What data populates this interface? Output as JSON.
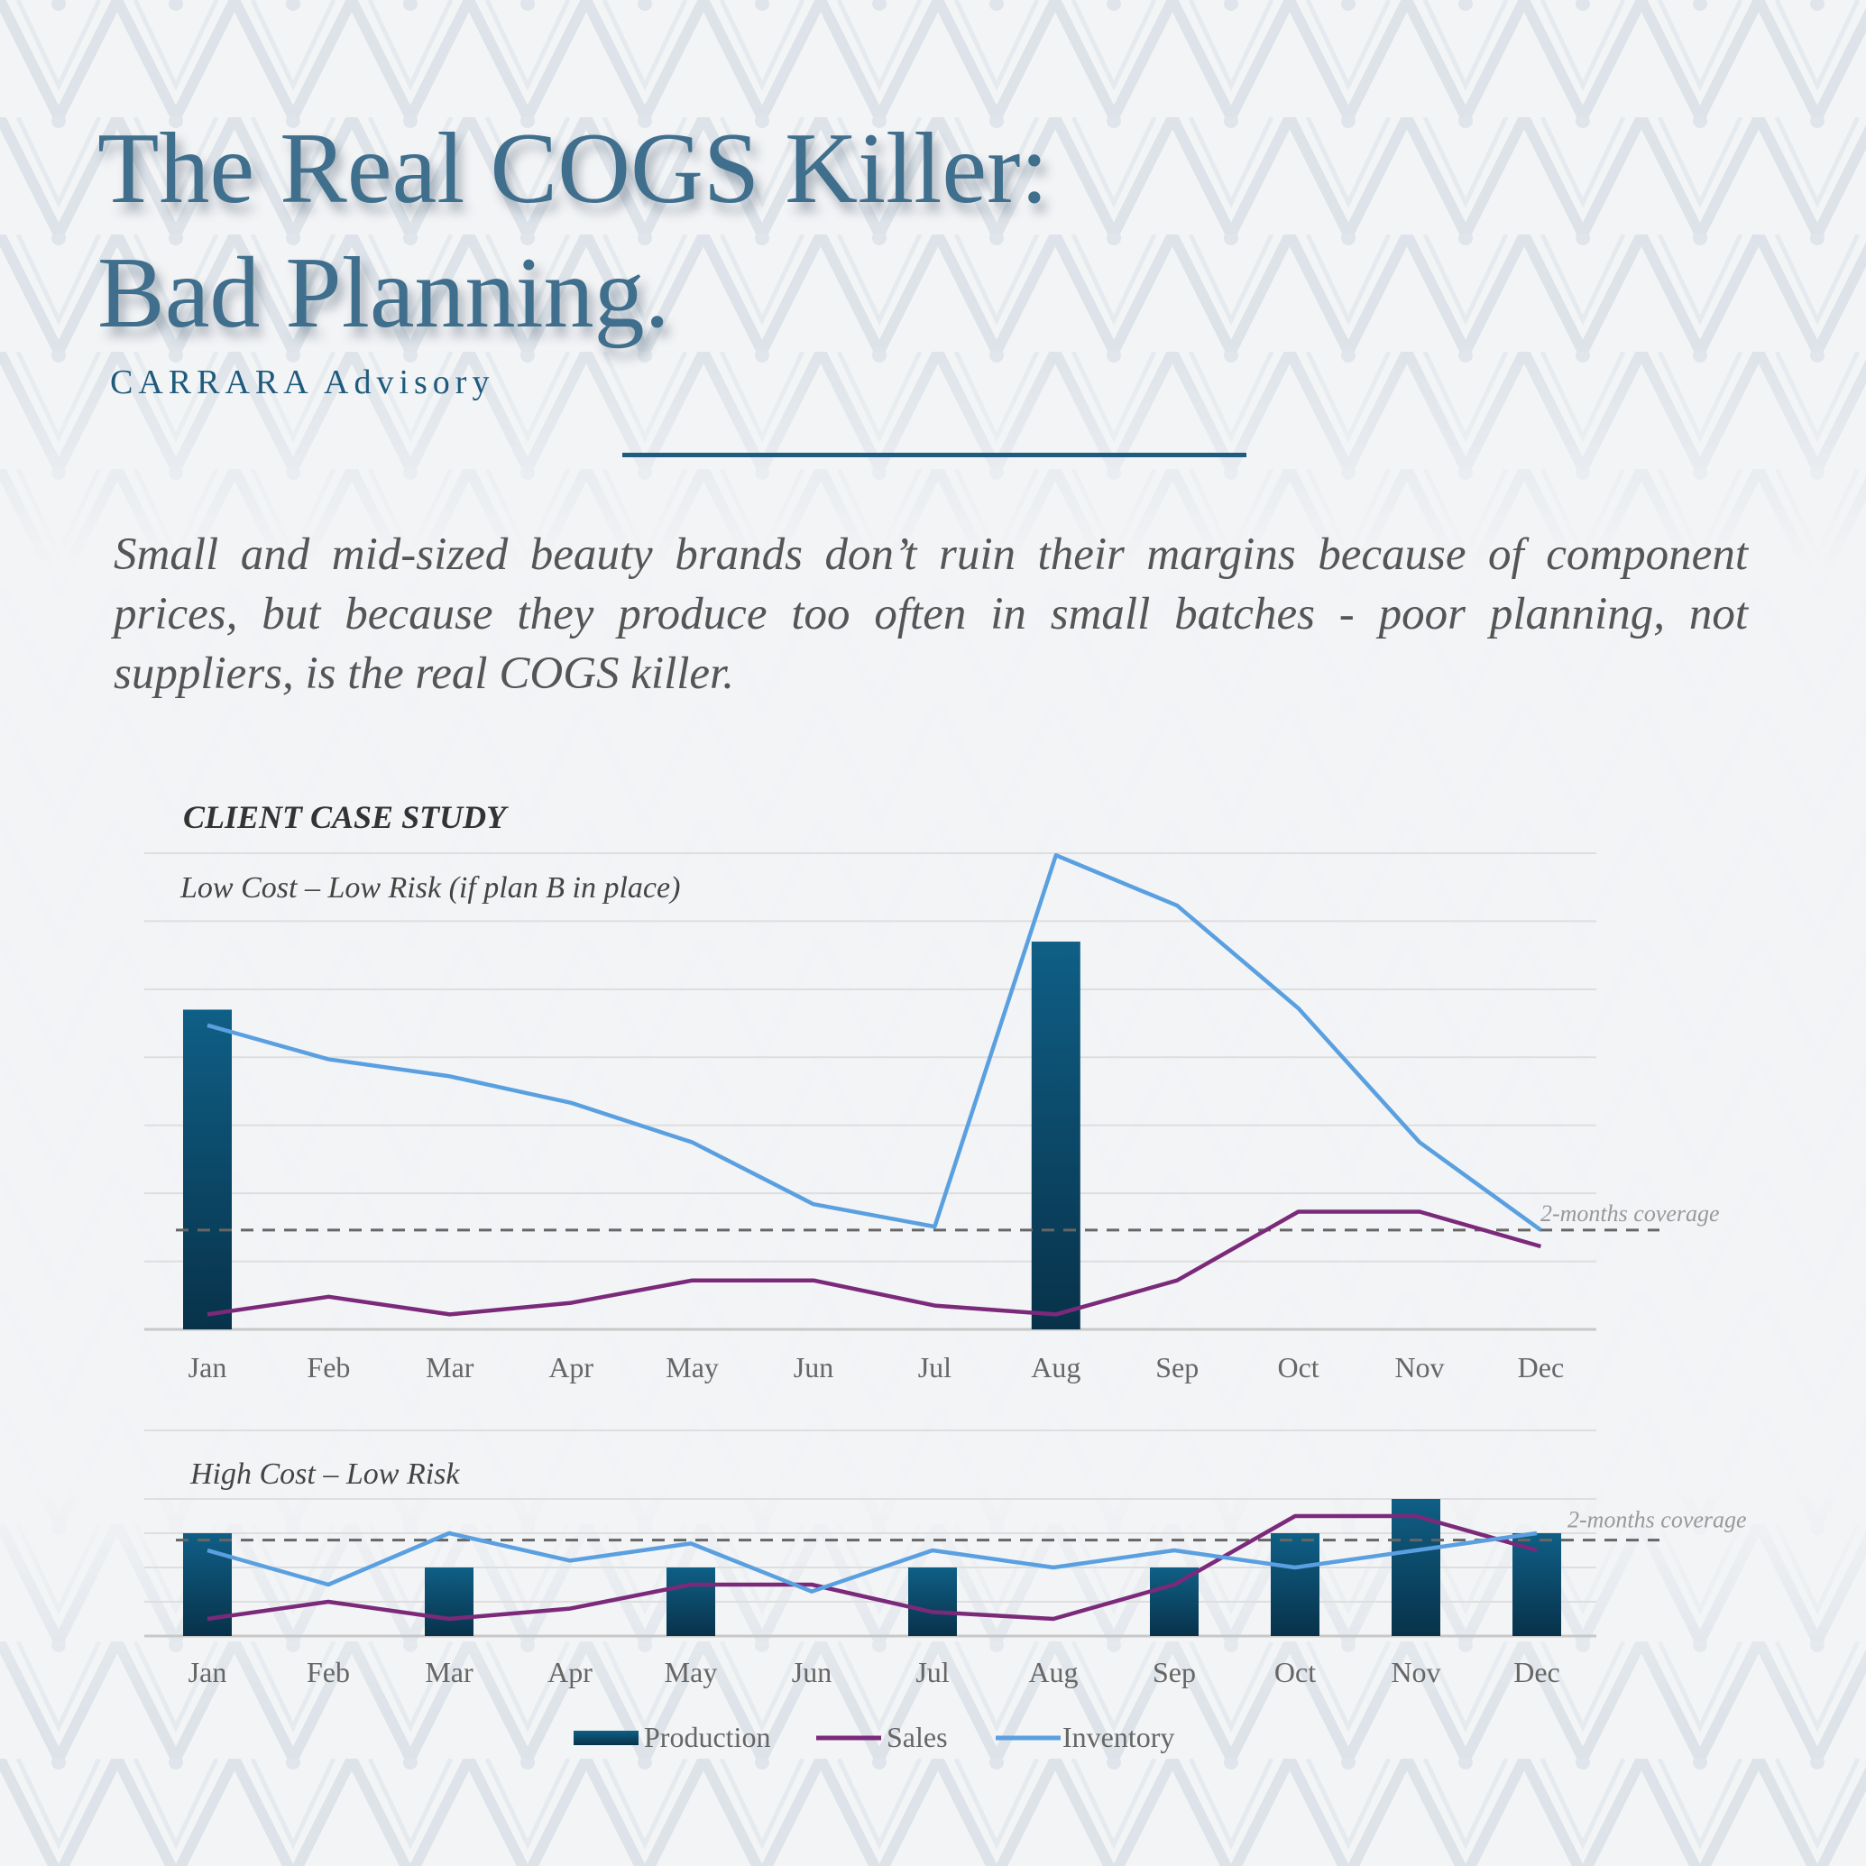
{
  "header": {
    "title_line1": "The Real COGS Killer:",
    "title_line2": "Bad Planning.",
    "brand": "CARRARA  Advisory"
  },
  "lead_text": "Small and mid-sized beauty brands don’t ruin their margins because of component prices, but because they produce too often in small batches - poor planning, not suppliers, is the real COGS killer.",
  "case_title": "CLIENT CASE STUDY",
  "colors": {
    "title": "#3f6f8c",
    "production": "#0f5f86",
    "production_dark": "#08324a",
    "sales": "#7b2a7a",
    "inventory": "#5aa0e0",
    "coverage": "#666666"
  },
  "legend": {
    "production": "Production",
    "sales": "Sales",
    "inventory": "Inventory"
  },
  "chart_data": [
    {
      "type": "bar",
      "subtitle": "Low Cost – Low Risk (if plan B in place)",
      "categories": [
        "Jan",
        "Feb",
        "Mar",
        "Apr",
        "May",
        "Jun",
        "Jul",
        "Aug",
        "Sep",
        "Oct",
        "Nov",
        "Dec"
      ],
      "ylim": [
        0,
        7
      ],
      "grid": true,
      "legend_placement": "bottom",
      "series": [
        {
          "name": "Production",
          "kind": "bar",
          "values": [
            4.7,
            null,
            null,
            null,
            null,
            null,
            null,
            5.7,
            null,
            null,
            null,
            null
          ]
        },
        {
          "name": "Sales",
          "kind": "line",
          "values": [
            0.22,
            0.48,
            0.22,
            0.39,
            0.72,
            0.72,
            0.35,
            0.22,
            0.72,
            1.73,
            1.73,
            1.22
          ]
        },
        {
          "name": "Inventory",
          "kind": "line",
          "values": [
            4.47,
            3.97,
            3.72,
            3.33,
            2.75,
            1.84,
            1.51,
            6.97,
            6.23,
            4.72,
            2.75,
            1.46
          ]
        }
      ],
      "reference_line": {
        "label": "2-months coverage",
        "value": 1.46
      }
    },
    {
      "type": "bar",
      "subtitle": "High Cost – Low Risk",
      "categories": [
        "Jan",
        "Feb",
        "Mar",
        "Apr",
        "May",
        "Jun",
        "Jul",
        "Aug",
        "Sep",
        "Oct",
        "Nov",
        "Dec"
      ],
      "ylim": [
        0,
        2
      ],
      "grid": true,
      "legend_placement": "bottom",
      "series": [
        {
          "name": "Production",
          "kind": "bar",
          "values": [
            1.5,
            null,
            1.0,
            null,
            1.0,
            null,
            1.0,
            null,
            1.0,
            1.5,
            2.0,
            1.5
          ]
        },
        {
          "name": "Sales",
          "kind": "line",
          "values": [
            0.25,
            0.5,
            0.25,
            0.4,
            0.75,
            0.75,
            0.35,
            0.25,
            0.75,
            1.75,
            1.75,
            1.25
          ]
        },
        {
          "name": "Inventory",
          "kind": "line",
          "values": [
            1.25,
            0.75,
            1.5,
            1.1,
            1.35,
            0.65,
            1.25,
            1.0,
            1.25,
            1.0,
            1.25,
            1.5
          ]
        }
      ],
      "reference_line": {
        "label": "2-months coverage",
        "value": 1.4
      }
    }
  ]
}
